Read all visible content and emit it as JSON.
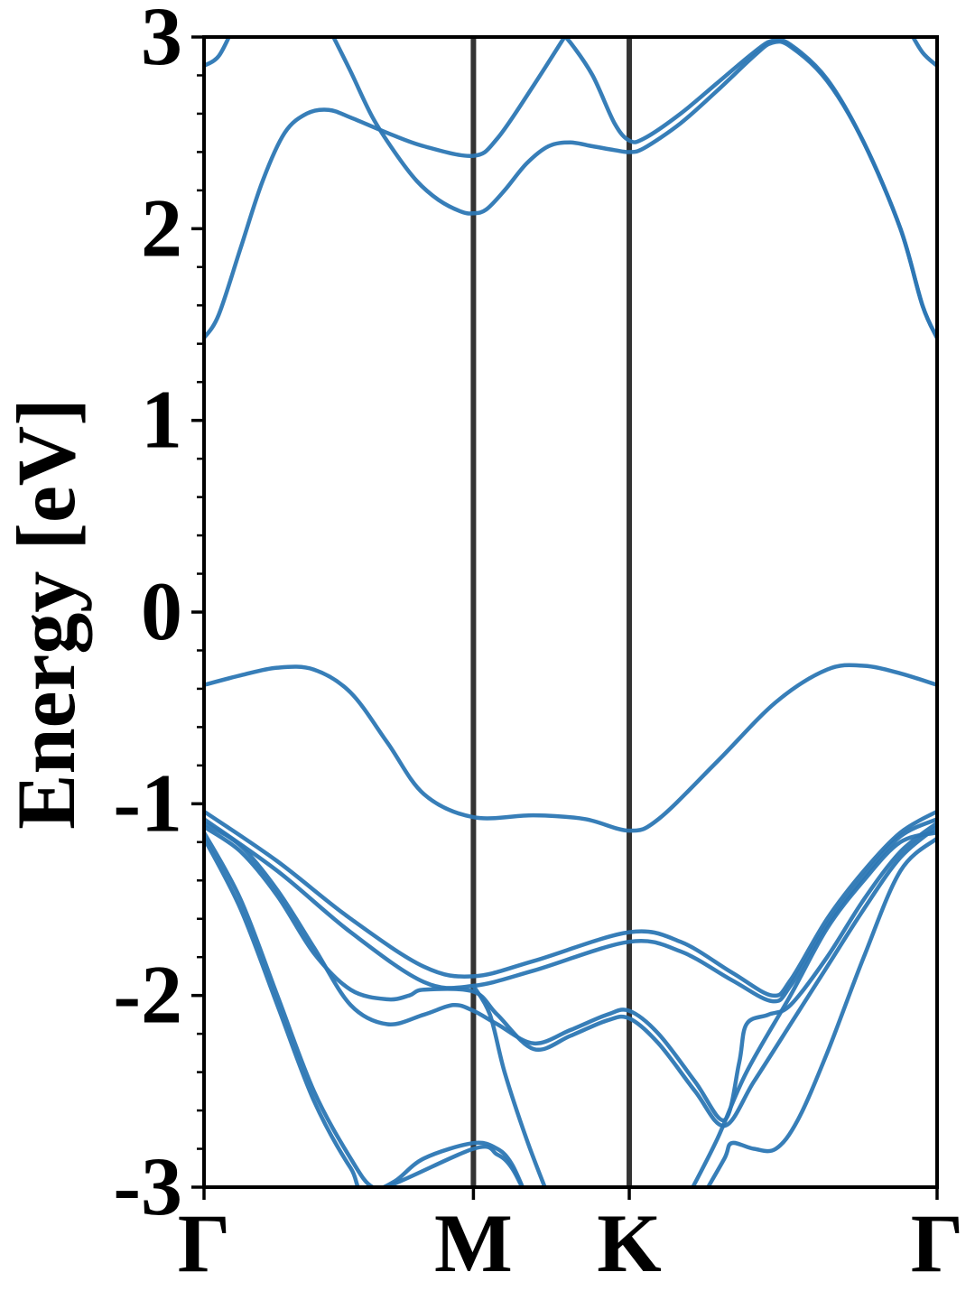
{
  "chart_data": {
    "type": "line",
    "xlabel": "",
    "ylabel": "Energy [eV]",
    "ylim": [
      -3,
      3
    ],
    "xlim": [
      0,
      1
    ],
    "yticks": [
      -3,
      -2,
      -1,
      0,
      1,
      2,
      3
    ],
    "ytick_labels": [
      "-3",
      "-2",
      "-1",
      "0",
      "1",
      "2",
      "3"
    ],
    "yminor_step": 0.2,
    "kpoints": [
      {
        "label": "Γ",
        "x": 0.0
      },
      {
        "label": "M",
        "x": 0.3675
      },
      {
        "label": "K",
        "x": 0.5801
      },
      {
        "label": "Γ",
        "x": 1.0
      }
    ],
    "grid": false,
    "colors": {
      "band": "#2c77b4",
      "kline": "#333333",
      "axis": "#000000"
    },
    "series": [
      {
        "values": [
          [
            0.0,
            2.85
          ],
          [
            0.02,
            2.9
          ],
          [
            0.04,
            3.05
          ]
        ]
      },
      {
        "values": [
          [
            0.17,
            3.05
          ],
          [
            0.2,
            2.82
          ],
          [
            0.23,
            2.58
          ],
          [
            0.26,
            2.4
          ],
          [
            0.29,
            2.25
          ],
          [
            0.32,
            2.15
          ],
          [
            0.35,
            2.09
          ],
          [
            0.3675,
            2.08
          ],
          [
            0.385,
            2.1
          ],
          [
            0.41,
            2.2
          ],
          [
            0.44,
            2.34
          ],
          [
            0.47,
            2.43
          ],
          [
            0.5,
            2.45
          ],
          [
            0.53,
            2.43
          ],
          [
            0.56,
            2.41
          ],
          [
            0.5801,
            2.4
          ],
          [
            0.6,
            2.42
          ],
          [
            0.65,
            2.55
          ],
          [
            0.7,
            2.72
          ],
          [
            0.75,
            2.9
          ],
          [
            0.775,
            2.97
          ],
          [
            0.8,
            2.95
          ],
          [
            0.85,
            2.77
          ],
          [
            0.9,
            2.45
          ],
          [
            0.95,
            2.0
          ],
          [
            0.98,
            1.6
          ],
          [
            1.0,
            1.43
          ]
        ]
      },
      {
        "values": [
          [
            0.0,
            1.43
          ],
          [
            0.02,
            1.55
          ],
          [
            0.05,
            1.9
          ],
          [
            0.08,
            2.25
          ],
          [
            0.11,
            2.5
          ],
          [
            0.14,
            2.6
          ],
          [
            0.17,
            2.62
          ],
          [
            0.2,
            2.58
          ],
          [
            0.25,
            2.5
          ],
          [
            0.3,
            2.43
          ],
          [
            0.3675,
            2.38
          ],
          [
            0.4,
            2.47
          ],
          [
            0.45,
            2.75
          ],
          [
            0.5,
            3.05
          ]
        ]
      },
      {
        "values": [
          [
            0.48,
            3.05
          ],
          [
            0.5,
            2.97
          ],
          [
            0.53,
            2.8
          ],
          [
            0.56,
            2.55
          ],
          [
            0.5801,
            2.46
          ],
          [
            0.6,
            2.47
          ],
          [
            0.65,
            2.6
          ],
          [
            0.7,
            2.76
          ],
          [
            0.75,
            2.92
          ],
          [
            0.775,
            2.98
          ],
          [
            0.8,
            2.96
          ],
          [
            0.85,
            2.78
          ],
          [
            0.9,
            2.45
          ],
          [
            0.95,
            2.0
          ],
          [
            0.98,
            1.6
          ],
          [
            1.0,
            1.43
          ]
        ]
      },
      {
        "values": [
          [
            0.96,
            3.05
          ],
          [
            0.98,
            2.92
          ],
          [
            1.0,
            2.85
          ]
        ]
      },
      {
        "values": [
          [
            0.0,
            -0.38
          ],
          [
            0.05,
            -0.33
          ],
          [
            0.1,
            -0.29
          ],
          [
            0.15,
            -0.3
          ],
          [
            0.2,
            -0.42
          ],
          [
            0.25,
            -0.68
          ],
          [
            0.3,
            -0.95
          ],
          [
            0.3675,
            -1.07
          ],
          [
            0.45,
            -1.06
          ],
          [
            0.52,
            -1.08
          ],
          [
            0.5801,
            -1.14
          ],
          [
            0.62,
            -1.08
          ],
          [
            0.7,
            -0.78
          ],
          [
            0.78,
            -0.47
          ],
          [
            0.85,
            -0.3
          ],
          [
            0.9,
            -0.28
          ],
          [
            0.95,
            -0.32
          ],
          [
            1.0,
            -0.38
          ]
        ]
      },
      {
        "values": [
          [
            0.0,
            -1.04
          ],
          [
            0.1,
            -1.3
          ],
          [
            0.2,
            -1.6
          ],
          [
            0.3,
            -1.85
          ],
          [
            0.3675,
            -1.9
          ],
          [
            0.45,
            -1.82
          ],
          [
            0.5801,
            -1.67
          ],
          [
            0.65,
            -1.72
          ],
          [
            0.72,
            -1.88
          ],
          [
            0.775,
            -2.0
          ],
          [
            0.8,
            -1.92
          ],
          [
            0.85,
            -1.6
          ],
          [
            0.9,
            -1.35
          ],
          [
            0.95,
            -1.15
          ],
          [
            1.0,
            -1.04
          ]
        ]
      },
      {
        "values": [
          [
            0.0,
            -1.08
          ],
          [
            0.1,
            -1.35
          ],
          [
            0.2,
            -1.67
          ],
          [
            0.3,
            -1.93
          ],
          [
            0.3675,
            -1.95
          ],
          [
            0.45,
            -1.87
          ],
          [
            0.5801,
            -1.72
          ],
          [
            0.65,
            -1.77
          ],
          [
            0.72,
            -1.92
          ],
          [
            0.775,
            -2.03
          ],
          [
            0.8,
            -1.95
          ],
          [
            0.85,
            -1.63
          ],
          [
            0.9,
            -1.38
          ],
          [
            0.95,
            -1.17
          ],
          [
            1.0,
            -1.08
          ]
        ]
      },
      {
        "values": [
          [
            0.0,
            -1.1
          ],
          [
            0.05,
            -1.22
          ],
          [
            0.1,
            -1.45
          ],
          [
            0.15,
            -1.75
          ],
          [
            0.2,
            -2.05
          ],
          [
            0.25,
            -2.15
          ],
          [
            0.3,
            -2.1
          ],
          [
            0.34,
            -2.05
          ],
          [
            0.3675,
            -2.08
          ],
          [
            0.4,
            -2.15
          ],
          [
            0.45,
            -2.25
          ],
          [
            0.5,
            -2.18
          ],
          [
            0.55,
            -2.1
          ],
          [
            0.5801,
            -2.08
          ],
          [
            0.62,
            -2.2
          ],
          [
            0.67,
            -2.45
          ],
          [
            0.71,
            -2.65
          ],
          [
            0.73,
            -2.35
          ],
          [
            0.74,
            -2.15
          ],
          [
            0.77,
            -2.1
          ],
          [
            0.8,
            -2.05
          ],
          [
            0.85,
            -1.8
          ],
          [
            0.9,
            -1.5
          ],
          [
            0.95,
            -1.25
          ],
          [
            1.0,
            -1.1
          ]
        ]
      },
      {
        "values": [
          [
            0.0,
            -1.12
          ],
          [
            0.05,
            -1.25
          ],
          [
            0.1,
            -1.48
          ],
          [
            0.15,
            -1.78
          ],
          [
            0.2,
            -1.97
          ],
          [
            0.25,
            -2.02
          ],
          [
            0.28,
            -2.0
          ],
          [
            0.3,
            -1.97
          ],
          [
            0.3675,
            -1.98
          ],
          [
            0.4,
            -2.1
          ],
          [
            0.45,
            -2.28
          ],
          [
            0.5,
            -2.21
          ],
          [
            0.55,
            -2.13
          ],
          [
            0.5801,
            -2.12
          ],
          [
            0.62,
            -2.25
          ],
          [
            0.67,
            -2.5
          ],
          [
            0.71,
            -2.68
          ],
          [
            0.75,
            -2.45
          ],
          [
            0.8,
            -2.15
          ],
          [
            0.85,
            -1.85
          ],
          [
            0.9,
            -1.55
          ],
          [
            0.95,
            -1.28
          ],
          [
            1.0,
            -1.12
          ]
        ]
      },
      {
        "values": [
          [
            0.0,
            -1.15
          ],
          [
            0.05,
            -1.5
          ],
          [
            0.1,
            -2.0
          ],
          [
            0.15,
            -2.5
          ],
          [
            0.2,
            -2.85
          ],
          [
            0.23,
            -3.0
          ],
          [
            0.26,
            -2.97
          ],
          [
            0.3,
            -2.85
          ],
          [
            0.3675,
            -2.77
          ],
          [
            0.4,
            -2.8
          ],
          [
            0.42,
            -2.88
          ],
          [
            0.44,
            -3.05
          ]
        ]
      },
      {
        "values": [
          [
            0.0,
            -1.18
          ],
          [
            0.05,
            -1.55
          ],
          [
            0.1,
            -2.05
          ],
          [
            0.15,
            -2.55
          ],
          [
            0.2,
            -2.9
          ],
          [
            0.23,
            -3.02
          ],
          [
            0.3675,
            -2.8
          ],
          [
            0.4,
            -2.83
          ],
          [
            0.42,
            -2.9
          ],
          [
            0.44,
            -3.05
          ]
        ]
      },
      {
        "values": [
          [
            0.3675,
            -1.95
          ],
          [
            0.39,
            -2.1
          ],
          [
            0.41,
            -2.4
          ],
          [
            0.44,
            -2.75
          ],
          [
            0.47,
            -3.05
          ]
        ]
      },
      {
        "values": [
          [
            0.66,
            -3.05
          ],
          [
            0.7,
            -2.75
          ],
          [
            0.74,
            -2.4
          ],
          [
            0.8,
            -2.0
          ],
          [
            0.85,
            -1.65
          ],
          [
            0.9,
            -1.4
          ],
          [
            0.95,
            -1.2
          ],
          [
            1.0,
            -1.15
          ]
        ]
      },
      {
        "values": [
          [
            0.68,
            -3.05
          ],
          [
            0.71,
            -2.85
          ],
          [
            0.72,
            -2.77
          ],
          [
            0.75,
            -2.8
          ],
          [
            0.78,
            -2.8
          ],
          [
            0.81,
            -2.65
          ],
          [
            0.85,
            -2.3
          ],
          [
            0.9,
            -1.8
          ],
          [
            0.95,
            -1.35
          ],
          [
            1.0,
            -1.18
          ]
        ]
      }
    ]
  },
  "axes": {
    "ylabel": "Energy [eV]"
  }
}
